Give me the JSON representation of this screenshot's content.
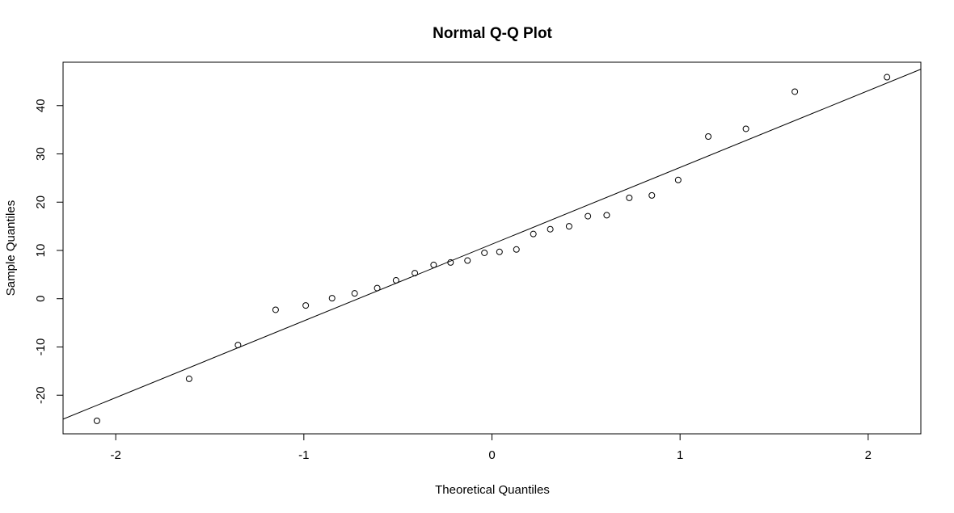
{
  "chart_data": {
    "type": "scatter",
    "title": "Normal Q-Q Plot",
    "xlabel": "Theoretical Quantiles",
    "ylabel": "Sample Quantiles",
    "xlim": [
      -2.28,
      2.28
    ],
    "ylim": [
      -28,
      49
    ],
    "x_ticks": [
      -2,
      -1,
      0,
      1,
      2
    ],
    "x_tick_labels": [
      "-2",
      "-1",
      "0",
      "1",
      "2"
    ],
    "y_ticks": [
      -20,
      -10,
      0,
      10,
      20,
      30,
      40
    ],
    "y_tick_labels": [
      "-20",
      "-10",
      "0",
      "10",
      "20",
      "30",
      "40"
    ],
    "grid": false,
    "points": [
      {
        "x": -2.1,
        "y": -25.3
      },
      {
        "x": -1.61,
        "y": -16.6
      },
      {
        "x": -1.35,
        "y": -9.6
      },
      {
        "x": -1.15,
        "y": -2.3
      },
      {
        "x": -0.99,
        "y": -1.4
      },
      {
        "x": -0.85,
        "y": 0.1
      },
      {
        "x": -0.73,
        "y": 1.1
      },
      {
        "x": -0.61,
        "y": 2.2
      },
      {
        "x": -0.51,
        "y": 3.8
      },
      {
        "x": -0.41,
        "y": 5.3
      },
      {
        "x": -0.31,
        "y": 7.0
      },
      {
        "x": -0.22,
        "y": 7.5
      },
      {
        "x": -0.13,
        "y": 7.9
      },
      {
        "x": -0.04,
        "y": 9.5
      },
      {
        "x": 0.04,
        "y": 9.7
      },
      {
        "x": 0.13,
        "y": 10.2
      },
      {
        "x": 0.22,
        "y": 13.4
      },
      {
        "x": 0.31,
        "y": 14.4
      },
      {
        "x": 0.41,
        "y": 15.0
      },
      {
        "x": 0.51,
        "y": 17.1
      },
      {
        "x": 0.61,
        "y": 17.3
      },
      {
        "x": 0.73,
        "y": 20.9
      },
      {
        "x": 0.85,
        "y": 21.4
      },
      {
        "x": 0.99,
        "y": 24.6
      },
      {
        "x": 1.15,
        "y": 33.6
      },
      {
        "x": 1.35,
        "y": 35.2
      },
      {
        "x": 1.61,
        "y": 42.9
      },
      {
        "x": 2.1,
        "y": 45.9
      }
    ],
    "reference_line": {
      "intercept": 11.3,
      "slope": 15.9
    }
  }
}
